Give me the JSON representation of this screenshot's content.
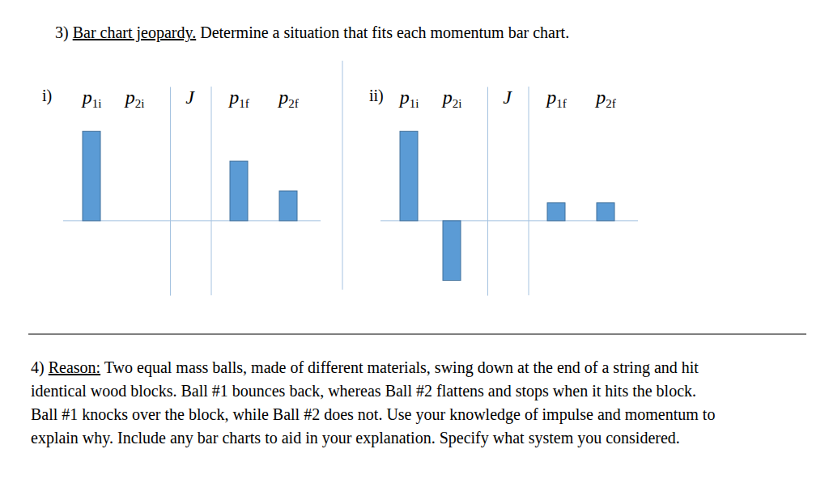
{
  "question_3": {
    "number": "3)",
    "heading": "Bar chart jeopardy.",
    "text": "Determine a situation that fits each momentum bar chart."
  },
  "chart_data": [
    {
      "type": "bar",
      "title": "i)",
      "categories": [
        "p1i",
        "p2i",
        "J",
        "p1f",
        "p2f"
      ],
      "values": [
        3,
        0,
        0,
        2,
        1
      ],
      "color": "#5b9bd5",
      "ylim": [
        -2.5,
        4.5
      ],
      "yticks": [
        0
      ],
      "tick_labels": "x"
    },
    {
      "type": "bar",
      "title": "ii)",
      "categories": [
        "p1i",
        "p2i",
        "J",
        "p1f",
        "p2f"
      ],
      "values": [
        3,
        -2,
        0,
        0.6,
        0.6
      ],
      "color": "#5b9bd5",
      "ylim": [
        -2.5,
        4.5
      ],
      "yticks": [
        0
      ],
      "tick_labels": "x"
    }
  ],
  "question_4": {
    "number": "4)",
    "heading": "Reason:",
    "lines": [
      "Two equal mass balls, made of different materials, swing down at the end of a string and hit",
      "identical wood blocks. Ball #1 bounces back, whereas Ball #2 flattens and stops when it hits the block.",
      "Ball #1 knocks over the block, while Ball #2 does not. Use your knowledge of impulse and momentum to",
      "explain why. Include any bar charts to aid in your explanation. Specify what system you considered."
    ]
  }
}
